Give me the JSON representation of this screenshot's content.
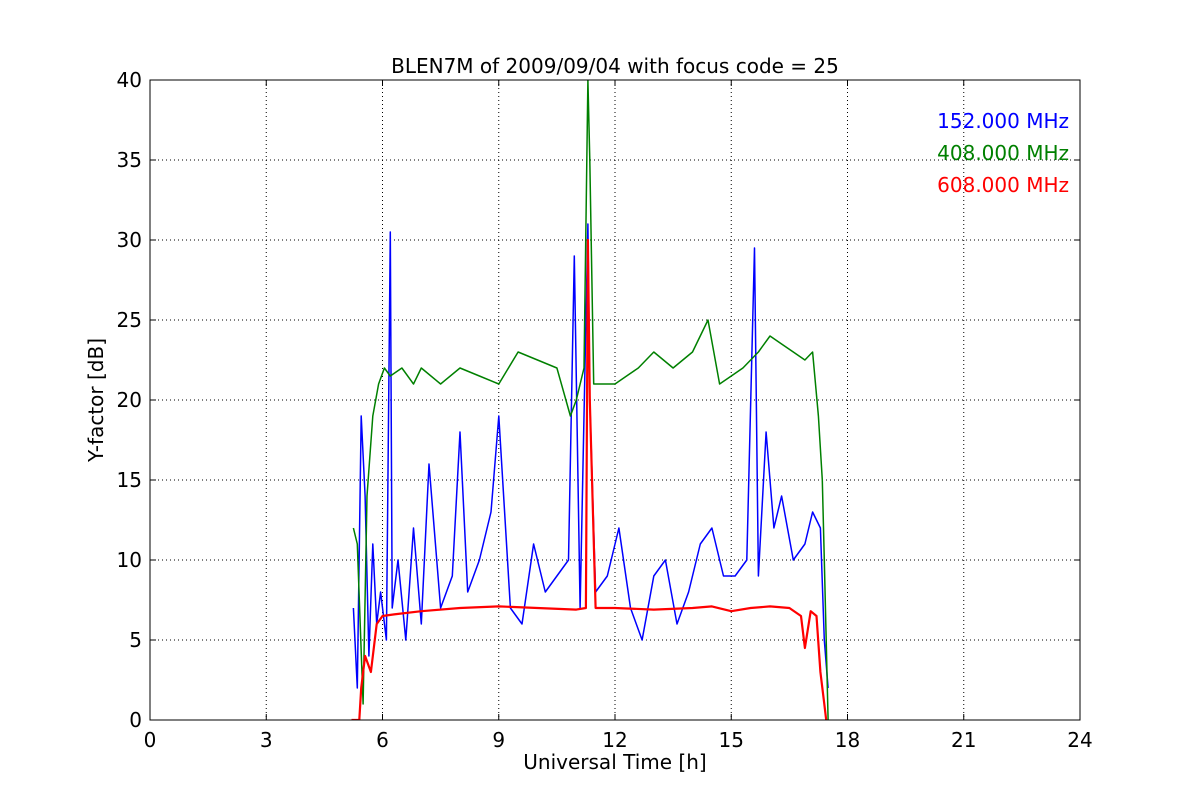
{
  "chart_data": {
    "type": "line",
    "title": "BLEN7M of 2009/09/04 with focus code = 25",
    "xlabel": "Universal Time [h]",
    "ylabel": "Y-factor [dB]",
    "xlim": [
      0,
      24
    ],
    "ylim": [
      0,
      40
    ],
    "xticks": [
      0,
      3,
      6,
      9,
      12,
      15,
      18,
      21,
      24
    ],
    "yticks": [
      0,
      5,
      10,
      15,
      20,
      25,
      30,
      35,
      40
    ],
    "grid": true,
    "grid_style": "dotted",
    "legend_position": "top-right",
    "series": [
      {
        "name": "152.000 MHz",
        "color": "#0000ff",
        "x": [
          5.25,
          5.35,
          5.45,
          5.55,
          5.65,
          5.75,
          5.85,
          5.95,
          6.1,
          6.2,
          6.25,
          6.4,
          6.6,
          6.8,
          7.0,
          7.2,
          7.5,
          7.8,
          8.0,
          8.2,
          8.5,
          8.8,
          9.0,
          9.3,
          9.6,
          9.9,
          10.2,
          10.5,
          10.8,
          10.95,
          11.1,
          11.3,
          11.35,
          11.5,
          11.8,
          12.1,
          12.4,
          12.7,
          13.0,
          13.3,
          13.6,
          13.9,
          14.2,
          14.5,
          14.8,
          15.1,
          15.4,
          15.6,
          15.7,
          15.9,
          16.1,
          16.3,
          16.6,
          16.9,
          17.1,
          17.3,
          17.4,
          17.5
        ],
        "y": [
          7,
          2,
          19,
          14,
          4,
          11,
          6,
          8,
          5,
          30.5,
          7,
          10,
          5,
          12,
          6,
          16,
          7,
          9,
          18,
          8,
          10,
          13,
          19,
          7,
          6,
          11,
          8,
          9,
          10,
          29,
          7,
          31,
          20,
          8,
          9,
          12,
          7,
          5,
          9,
          10,
          6,
          8,
          11,
          12,
          9,
          9,
          10,
          29.5,
          9,
          18,
          12,
          14,
          10,
          11,
          13,
          12,
          5,
          2
        ]
      },
      {
        "name": "408.000 MHz",
        "color": "#008000",
        "x": [
          5.25,
          5.35,
          5.5,
          5.6,
          5.75,
          5.9,
          6.05,
          6.2,
          6.5,
          6.8,
          7.0,
          7.5,
          8.0,
          8.5,
          9.0,
          9.5,
          10.0,
          10.5,
          10.85,
          11.0,
          11.2,
          11.3,
          11.35,
          11.45,
          11.7,
          12.0,
          12.3,
          12.6,
          13.0,
          13.5,
          14.0,
          14.4,
          14.7,
          15.0,
          15.3,
          15.7,
          16.0,
          16.3,
          16.6,
          16.9,
          17.1,
          17.25,
          17.35,
          17.4,
          17.5
        ],
        "y": [
          12,
          11,
          1,
          14,
          19,
          21,
          22,
          21.5,
          22,
          21,
          22,
          21,
          22,
          21.5,
          21,
          23,
          22.5,
          22,
          19,
          20,
          22,
          40,
          35,
          21,
          21,
          21,
          21.5,
          22,
          23,
          22,
          23,
          25,
          21,
          21.5,
          22,
          23,
          24,
          23.5,
          23,
          22.5,
          23,
          19,
          15,
          10,
          0
        ]
      },
      {
        "name": "608.000 MHz",
        "color": "#ff0000",
        "x": [
          5.2,
          5.4,
          5.45,
          5.55,
          5.7,
          5.85,
          6.0,
          6.3,
          7.0,
          8.0,
          9.0,
          10.0,
          11.0,
          11.25,
          11.3,
          11.35,
          11.5,
          12.0,
          13.0,
          14.0,
          14.5,
          15.0,
          15.5,
          16.0,
          16.5,
          16.8,
          16.9,
          17.05,
          17.2,
          17.3,
          17.4,
          17.45
        ],
        "y": [
          0,
          0,
          2,
          4,
          3,
          6,
          6.5,
          6.6,
          6.8,
          7,
          7.1,
          7,
          6.9,
          7,
          30,
          20,
          7,
          7,
          6.9,
          7,
          7.1,
          6.8,
          7,
          7.1,
          7.0,
          6.5,
          4.5,
          6.8,
          6.5,
          3,
          1,
          0
        ]
      }
    ]
  }
}
